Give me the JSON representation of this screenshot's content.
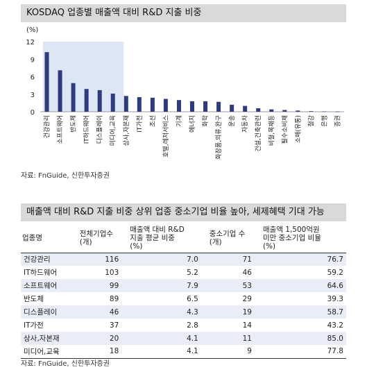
{
  "chart_title": "KOSDAQ 업종별 매출액 대비 R&D 지출 비중",
  "source_1": "자료: FnGuide, 신한투자증권",
  "table_title": "매출액 대비 R&D 지출 비중 상위 업종 중소기업 비율 높아, 세제혜택 기대 가능",
  "source_2": "자료:  FnGuide, 신한투자증권",
  "chart_data": {
    "type": "bar",
    "title": "KOSDAQ 업종별 매출액 대비 R&D 지출 비중",
    "ylabel": "(%)",
    "ylim": [
      0,
      12
    ],
    "yticks": [
      0,
      3,
      6,
      9,
      12
    ],
    "categories": [
      "건강관리",
      "소프트웨어",
      "반도체",
      "IT하드웨어",
      "디스플레이",
      "미디어,교육",
      "상사,자본재",
      "IT가전",
      "조선",
      "호텔,레저서비스",
      "기계",
      "에너지",
      "화학",
      "화장품,의류,완구",
      "운송",
      "자동차",
      "건설,건축관련",
      "비철,목재등",
      "필수소비재",
      "소매(유통)",
      "철강",
      "은행",
      "증권"
    ],
    "values": [
      10.2,
      7.1,
      4.9,
      3.9,
      3.7,
      3.1,
      2.7,
      2.5,
      2.4,
      2.2,
      2.0,
      1.8,
      1.8,
      1.7,
      1.2,
      1.0,
      0.6,
      0.4,
      0.3,
      0.2,
      0.1,
      0.05,
      0.03
    ],
    "highlight_count": 6,
    "bar_color": "#2e3b80",
    "highlight_color": "#dce6f5"
  },
  "table": {
    "headers": [
      [
        "업종명"
      ],
      [
        "전체기업수",
        "(개)"
      ],
      [
        "매출액 대비 R&D",
        "지출 평균 비중",
        "(%)"
      ],
      [
        "중소기업 수",
        "(개)"
      ],
      [
        "매출액 1,500억원",
        "미만 중소기업 비율",
        "(%)"
      ]
    ],
    "rows": [
      [
        "건강관리",
        "116",
        "7.0",
        "71",
        "76.7"
      ],
      [
        "IT하드웨어",
        "103",
        "5.2",
        "46",
        "59.2"
      ],
      [
        "소프트웨어",
        "99",
        "7.9",
        "53",
        "64.6"
      ],
      [
        "반도체",
        "89",
        "6.5",
        "29",
        "39.3"
      ],
      [
        "디스플레이",
        "46",
        "4.3",
        "19",
        "58.7"
      ],
      [
        "IT가전",
        "37",
        "2.8",
        "14",
        "43.2"
      ],
      [
        "상사,자본재",
        "20",
        "4.1",
        "11",
        "85.0"
      ],
      [
        "미디어,교육",
        "18",
        "4.1",
        "9",
        "77.8"
      ]
    ]
  }
}
